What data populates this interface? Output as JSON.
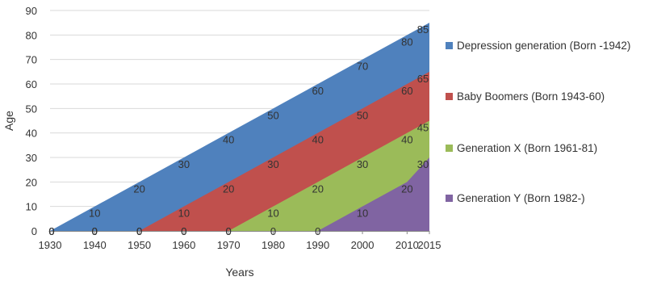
{
  "chart_data": {
    "type": "area",
    "title": "",
    "xlabel": "Years",
    "ylabel": "Age",
    "x": [
      1930,
      1940,
      1950,
      1960,
      1970,
      1980,
      1990,
      2000,
      2010,
      2015
    ],
    "ylim": [
      0,
      90
    ],
    "yticks": [
      0,
      10,
      20,
      30,
      40,
      50,
      60,
      70,
      80,
      90
    ],
    "grid": true,
    "legend": "right",
    "series": [
      {
        "name": "Depression generation (Born -1942)",
        "color": "#4F81BD",
        "values": [
          0,
          10,
          20,
          30,
          40,
          50,
          60,
          70,
          80,
          85
        ]
      },
      {
        "name": "Baby Boomers (Born 1943-60)",
        "color": "#C0504D",
        "values": [
          0,
          0,
          0,
          10,
          20,
          30,
          40,
          50,
          60,
          65
        ]
      },
      {
        "name": "Generation X (Born 1961-81)",
        "color": "#9BBB59",
        "values": [
          0,
          0,
          0,
          0,
          0,
          10,
          20,
          30,
          40,
          45
        ]
      },
      {
        "name": "Generation Y (Born 1982-)",
        "color": "#8064A2",
        "values": [
          0,
          0,
          0,
          0,
          0,
          0,
          0,
          10,
          20,
          30
        ]
      }
    ]
  }
}
